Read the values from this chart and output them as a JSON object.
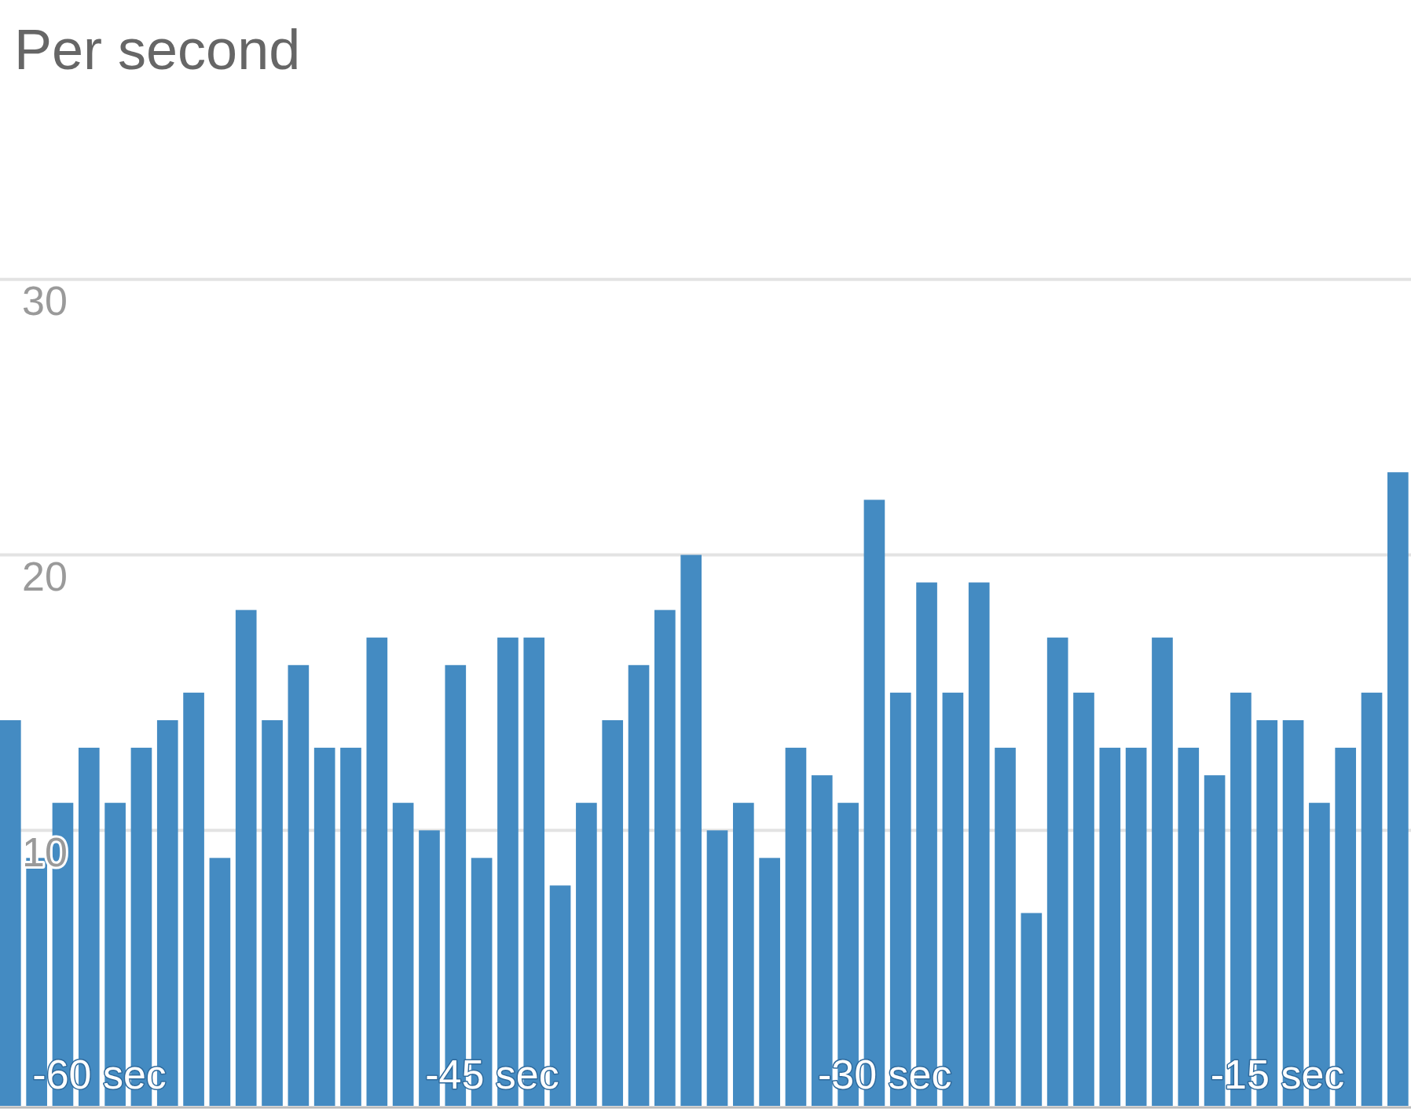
{
  "chart_data": {
    "type": "bar",
    "title": "Per second",
    "x": [
      -63.4,
      -62.4,
      -61.4,
      -60.4,
      -59.4,
      -58.4,
      -57.4,
      -56.4,
      -55.4,
      -54.4,
      -53.4,
      -52.4,
      -51.4,
      -50.4,
      -49.4,
      -48.4,
      -47.4,
      -46.4,
      -45.4,
      -44.4,
      -43.4,
      -42.4,
      -41.4,
      -40.4,
      -39.4,
      -38.4,
      -37.4,
      -36.4,
      -35.4,
      -34.4,
      -33.4,
      -32.4,
      -31.4,
      -30.4,
      -29.4,
      -28.4,
      -27.4,
      -26.4,
      -25.4,
      -24.4,
      -23.4,
      -22.4,
      -21.4,
      -20.4,
      -19.4,
      -18.4,
      -17.4,
      -16.4,
      -15.4,
      -14.4,
      -13.4,
      -12.4,
      -11.4,
      -10.4
    ],
    "values": [
      14,
      9,
      11,
      13,
      11,
      13,
      14,
      15,
      9,
      18,
      14,
      16,
      13,
      13,
      17,
      11,
      10,
      16,
      9,
      17,
      17,
      8,
      11,
      14,
      16,
      18,
      20,
      10,
      11,
      9,
      13,
      12,
      11,
      22,
      15,
      19,
      15,
      19,
      13,
      7,
      17,
      15,
      13,
      13,
      17,
      13,
      12,
      15,
      14,
      14,
      11,
      13,
      15,
      23
    ],
    "color": "#448bc2",
    "xlim": [
      -63.8,
      -9.9
    ],
    "xticks": [
      {
        "value": -60,
        "label": "-60 sec"
      },
      {
        "value": -45,
        "label": "-45 sec"
      },
      {
        "value": -30,
        "label": "-30 sec"
      },
      {
        "value": -15,
        "label": "-15 sec"
      }
    ],
    "ylim": [
      0,
      40
    ],
    "yticks": [
      10,
      20,
      30
    ],
    "grid": "y"
  }
}
